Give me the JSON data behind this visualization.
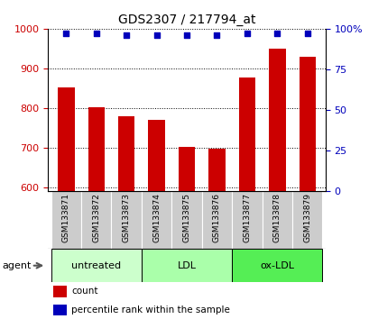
{
  "title": "GDS2307 / 217794_at",
  "categories": [
    "GSM133871",
    "GSM133872",
    "GSM133873",
    "GSM133874",
    "GSM133875",
    "GSM133876",
    "GSM133877",
    "GSM133878",
    "GSM133879"
  ],
  "counts": [
    852,
    803,
    780,
    770,
    703,
    697,
    876,
    950,
    930
  ],
  "percentiles": [
    97,
    97,
    96,
    96,
    96,
    96,
    97,
    97,
    97
  ],
  "ylim_left": [
    590,
    1000
  ],
  "ylim_right": [
    0,
    100
  ],
  "yticks_left": [
    600,
    700,
    800,
    900,
    1000
  ],
  "yticks_right": [
    0,
    25,
    50,
    75,
    100
  ],
  "bar_color": "#cc0000",
  "dot_color": "#0000bb",
  "groups": [
    {
      "label": "untreated",
      "indices": [
        0,
        1,
        2
      ],
      "color": "#ccffcc"
    },
    {
      "label": "LDL",
      "indices": [
        3,
        4,
        5
      ],
      "color": "#aaffaa"
    },
    {
      "label": "ox-LDL",
      "indices": [
        6,
        7,
        8
      ],
      "color": "#55ee55"
    }
  ],
  "agent_label": "agent",
  "legend_count_label": "count",
  "legend_pct_label": "percentile rank within the sample",
  "bar_width": 0.55,
  "grid_color": "#000000",
  "tick_label_color_left": "#cc0000",
  "tick_label_color_right": "#0000bb",
  "sample_box_color": "#cccccc"
}
